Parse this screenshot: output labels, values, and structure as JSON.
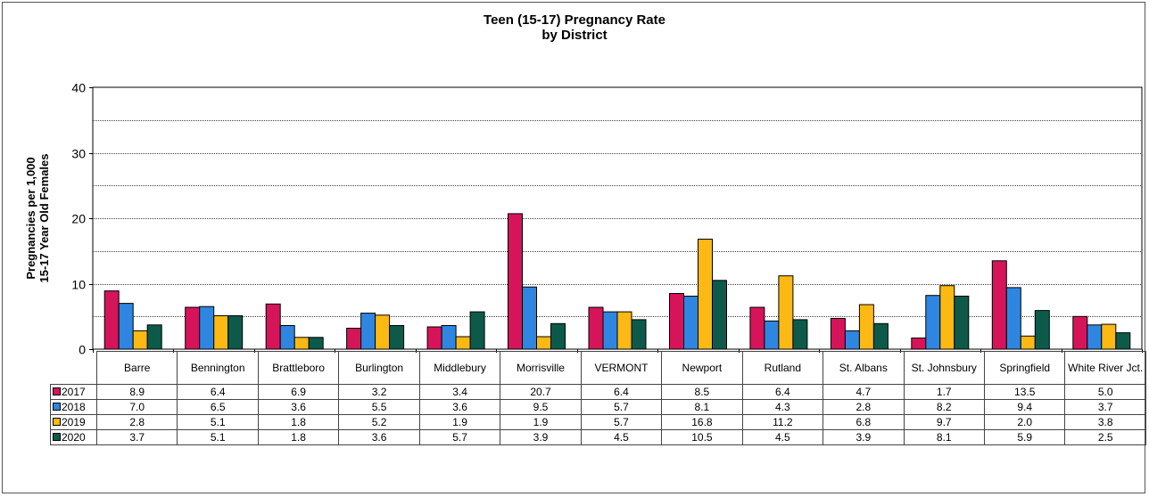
{
  "chart_data": {
    "type": "bar",
    "title_line1": "Teen (15-17) Pregnancy Rate",
    "title_line2": "by District",
    "ylabel_line1": "Pregnancies per 1,000",
    "ylabel_line2": "15-17 Year Old Females",
    "xlabel": "",
    "ylim": [
      0,
      40
    ],
    "y_ticks": [
      "0",
      "10",
      "20",
      "30",
      "40"
    ],
    "grid": "horizontal dotted lines every 5",
    "legend_placement": "data table below chart",
    "categories": [
      "Barre",
      "Bennington",
      "Brattleboro",
      "Burlington",
      "Middlebury",
      "Morrisville",
      "VERMONT",
      "Newport",
      "Rutland",
      "St. Albans",
      "St. Johnsbury",
      "Springfield",
      "White River Jct."
    ],
    "series": [
      {
        "name": "2017",
        "color": "#d6145a",
        "values": [
          8.9,
          6.4,
          6.9,
          3.2,
          3.4,
          20.7,
          6.4,
          8.5,
          6.4,
          4.7,
          1.7,
          13.5,
          5.0
        ],
        "labels": [
          "8.9",
          "6.4",
          "6.9",
          "3.2",
          "3.4",
          "20.7",
          "6.4",
          "8.5",
          "6.4",
          "4.7",
          "1.7",
          "13.5",
          "5.0"
        ]
      },
      {
        "name": "2018",
        "color": "#2e86e0",
        "values": [
          7.0,
          6.5,
          3.6,
          5.5,
          3.6,
          9.5,
          5.7,
          8.1,
          4.3,
          2.8,
          8.2,
          9.4,
          3.7
        ],
        "labels": [
          "7.0",
          "6.5",
          "3.6",
          "5.5",
          "3.6",
          "9.5",
          "5.7",
          "8.1",
          "4.3",
          "2.8",
          "8.2",
          "9.4",
          "3.7"
        ]
      },
      {
        "name": "2019",
        "color": "#fdb913",
        "values": [
          2.8,
          5.1,
          1.8,
          5.2,
          1.9,
          1.9,
          5.7,
          16.8,
          11.2,
          6.8,
          9.7,
          2.0,
          3.8
        ],
        "labels": [
          "2.8",
          "5.1",
          "1.8",
          "5.2",
          "1.9",
          "1.9",
          "5.7",
          "16.8",
          "11.2",
          "6.8",
          "9.7",
          "2.0",
          "3.8"
        ]
      },
      {
        "name": "2020",
        "color": "#0d5a4a",
        "values": [
          3.7,
          5.1,
          1.8,
          3.6,
          5.7,
          3.9,
          4.5,
          10.5,
          4.5,
          3.9,
          8.1,
          5.9,
          2.5
        ],
        "labels": [
          "3.7",
          "5.1",
          "1.8",
          "3.6",
          "5.7",
          "3.9",
          "4.5",
          "10.5",
          "4.5",
          "3.9",
          "8.1",
          "5.9",
          "2.5"
        ]
      }
    ]
  }
}
